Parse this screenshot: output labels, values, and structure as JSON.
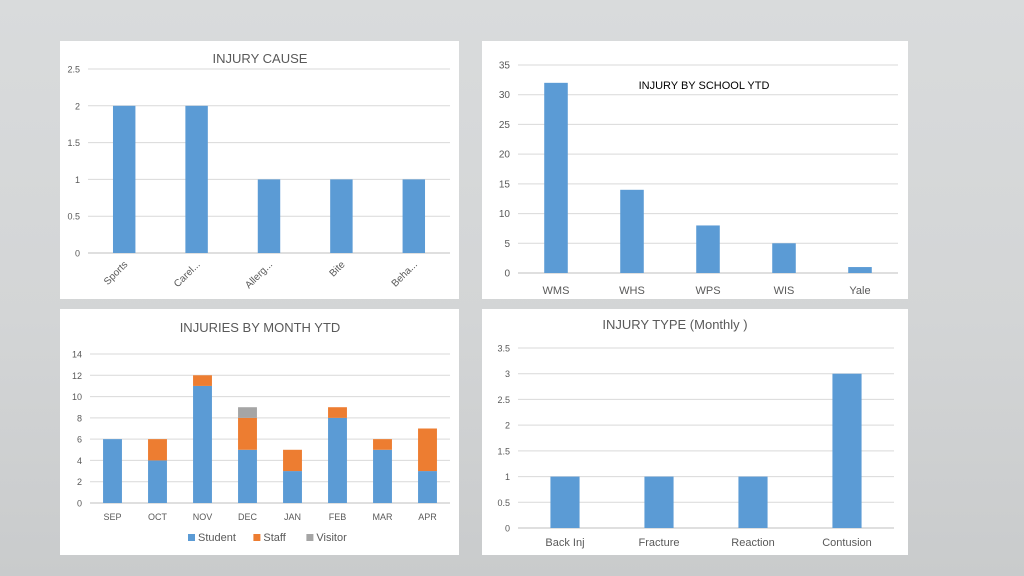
{
  "colors": {
    "student": "#5b9bd5",
    "staff": "#ed7d31",
    "visitor": "#a5a5a5",
    "bar": "#5b9bd5"
  },
  "chart_data": [
    {
      "id": "injury-cause",
      "type": "bar",
      "title": "INJURY CAUSE",
      "categories": [
        "Sports",
        "Carel...",
        "Allerg...",
        "Bite",
        "Beha..."
      ],
      "values": [
        2,
        2,
        1,
        1,
        1
      ],
      "ylim": [
        0,
        2.5
      ],
      "yticks": [
        "0",
        "0.5",
        "1",
        "1.5",
        "2",
        "2.5"
      ],
      "grid": true
    },
    {
      "id": "injury-by-school",
      "type": "bar",
      "title": "INJURY BY SCHOOL YTD",
      "categories": [
        "WMS",
        "WHS",
        "WPS",
        "WIS",
        "Yale"
      ],
      "values": [
        32,
        14,
        8,
        5,
        1
      ],
      "ylim": [
        0,
        35
      ],
      "yticks": [
        "0",
        "5",
        "10",
        "15",
        "20",
        "25",
        "30",
        "35"
      ],
      "grid": true
    },
    {
      "id": "injuries-by-month",
      "type": "bar",
      "stacked": true,
      "title": "INJURIES BY MONTH YTD",
      "categories": [
        "SEP",
        "OCT",
        "NOV",
        "DEC",
        "JAN",
        "FEB",
        "MAR",
        "APR"
      ],
      "series": [
        {
          "name": "Student",
          "values": [
            6,
            4,
            11,
            5,
            3,
            8,
            5,
            3
          ]
        },
        {
          "name": "Staff",
          "values": [
            0,
            2,
            1,
            3,
            2,
            1,
            1,
            4
          ]
        },
        {
          "name": "Visitor",
          "values": [
            0,
            0,
            0,
            1,
            0,
            0,
            0,
            0
          ]
        }
      ],
      "ylim": [
        0,
        14
      ],
      "yticks": [
        "0",
        "2",
        "4",
        "6",
        "8",
        "10",
        "12",
        "14"
      ],
      "legend": "bottom",
      "grid": true
    },
    {
      "id": "injury-type",
      "type": "bar",
      "title": "INJURY TYPE (Monthly )",
      "categories": [
        "Back Inj",
        "Fracture",
        "Reaction",
        "Contusion"
      ],
      "values": [
        1,
        1,
        1,
        3
      ],
      "ylim": [
        0,
        3.5
      ],
      "yticks": [
        "0",
        "0.5",
        "1",
        "1.5",
        "2",
        "2.5",
        "3",
        "3.5"
      ],
      "grid": true
    }
  ]
}
